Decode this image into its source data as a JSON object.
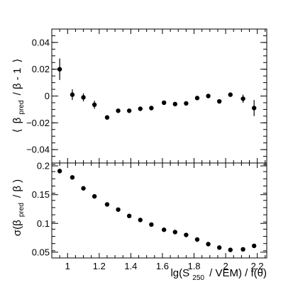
{
  "chart_data": [
    {
      "type": "scatter",
      "panel": "top",
      "ylabel_parts": {
        "open": "⟨",
        "beta": "β",
        "sub": "pred",
        "mid": "/ β - 1",
        "close": "⟩"
      },
      "xlim": [
        0.9,
        2.26
      ],
      "ylim": [
        -0.05,
        0.05
      ],
      "yticks": [
        -0.04,
        -0.02,
        0,
        0.02,
        0.04
      ],
      "ytick_labels": [
        "−0.04",
        "−0.02",
        "0",
        "0.02",
        "0.04"
      ],
      "x": [
        0.95,
        1.03,
        1.1,
        1.17,
        1.25,
        1.32,
        1.39,
        1.46,
        1.53,
        1.61,
        1.68,
        1.75,
        1.82,
        1.89,
        1.96,
        2.03,
        2.11,
        2.18
      ],
      "y": [
        0.02,
        0.001,
        -0.001,
        -0.0065,
        -0.016,
        -0.011,
        -0.011,
        -0.0095,
        -0.009,
        -0.005,
        -0.006,
        -0.0055,
        -0.0015,
        0.0,
        -0.004,
        0.001,
        -0.002,
        -0.009
      ],
      "yerr": [
        0.008,
        0.004,
        0.003,
        0.003,
        0.0015,
        0.0015,
        0.0015,
        0.0015,
        0.0015,
        0.0015,
        0.0015,
        0.0015,
        0.0015,
        0.0015,
        0.0015,
        0.0015,
        0.003,
        0.006
      ]
    },
    {
      "type": "scatter",
      "panel": "bottom",
      "ylabel_parts": {
        "pre": "σ(β",
        "sub": "pred",
        "post": "/ β )"
      },
      "xlabel_parts": {
        "pre": "lg(S",
        "sub": "250",
        "post": "/ VEM) / f(θ)"
      },
      "xlim": [
        0.9,
        2.26
      ],
      "ylim": [
        0.04,
        0.205
      ],
      "yticks": [
        0.05,
        0.1,
        0.15,
        0.2
      ],
      "ytick_labels": [
        "0.05",
        "0.1",
        "0.15",
        "0.2"
      ],
      "xticks": [
        1,
        1.2,
        1.4,
        1.6,
        1.8,
        2,
        2.2
      ],
      "xtick_labels": [
        "1",
        "1.2",
        "1.4",
        "1.6",
        "1.8",
        "2",
        "2.2"
      ],
      "x": [
        0.95,
        1.03,
        1.1,
        1.17,
        1.25,
        1.32,
        1.39,
        1.46,
        1.53,
        1.61,
        1.68,
        1.75,
        1.82,
        1.89,
        1.96,
        2.03,
        2.11,
        2.18
      ],
      "y": [
        0.191,
        0.18,
        0.161,
        0.147,
        0.133,
        0.124,
        0.113,
        0.106,
        0.098,
        0.089,
        0.085,
        0.08,
        0.072,
        0.064,
        0.058,
        0.054,
        0.055,
        0.061
      ],
      "yerr": [
        0.004,
        0.001,
        0.001,
        0.001,
        0.001,
        0.001,
        0.001,
        0.001,
        0.001,
        0.001,
        0.001,
        0.001,
        0.001,
        0.001,
        0.001,
        0.001,
        0.001,
        0.001
      ]
    }
  ]
}
